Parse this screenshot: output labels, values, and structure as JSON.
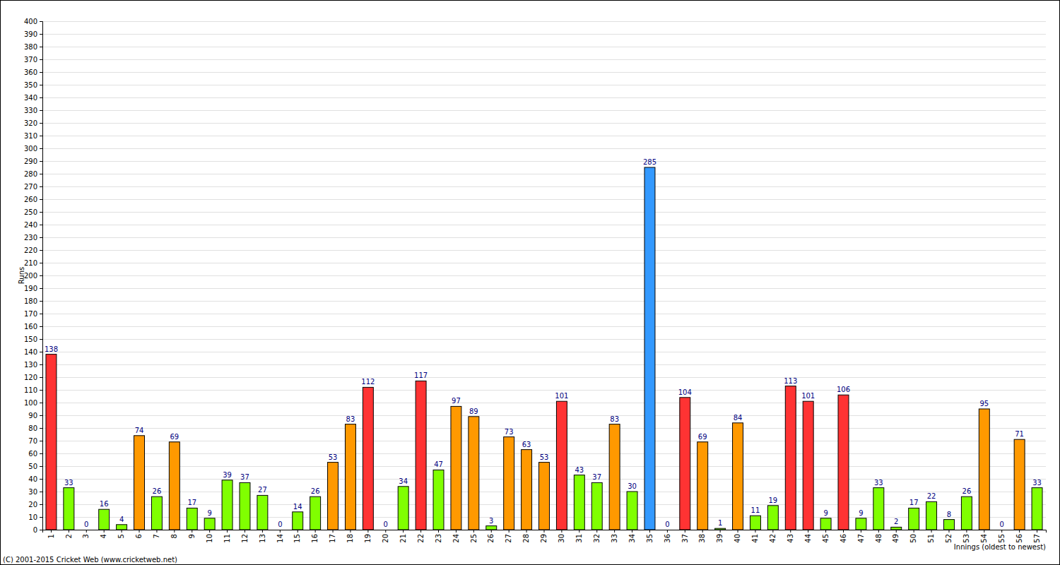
{
  "chart_data": {
    "type": "bar",
    "x_label": "Innings (oldest to newest)",
    "y_label": "Runs",
    "annotations": [
      "(C) 2001-2015 Cricket Web (www.cricketweb.net)"
    ],
    "categories": [
      "1",
      "2",
      "3",
      "4",
      "5",
      "6",
      "7",
      "8",
      "9",
      "10",
      "11",
      "12",
      "13",
      "14",
      "15",
      "16",
      "17",
      "18",
      "19",
      "20",
      "21",
      "22",
      "23",
      "24",
      "25",
      "26",
      "27",
      "28",
      "29",
      "30",
      "31",
      "32",
      "33",
      "34",
      "35",
      "36",
      "37",
      "38",
      "39",
      "40",
      "41",
      "42",
      "43",
      "44",
      "45",
      "46",
      "47",
      "48",
      "49",
      "50",
      "51",
      "52",
      "53",
      "54",
      "55",
      "56",
      "57"
    ],
    "values": [
      138,
      33,
      0,
      16,
      4,
      74,
      26,
      69,
      17,
      9,
      39,
      37,
      27,
      0,
      14,
      26,
      53,
      83,
      112,
      0,
      34,
      117,
      47,
      97,
      89,
      3,
      73,
      63,
      53,
      101,
      43,
      37,
      83,
      30,
      285,
      0,
      104,
      69,
      1,
      84,
      11,
      19,
      113,
      101,
      9,
      106,
      9,
      33,
      2,
      17,
      22,
      8,
      26,
      95,
      0,
      71,
      33
    ],
    "colors": [
      "#ff3333",
      "#80ff00",
      "#80ff00",
      "#80ff00",
      "#80ff00",
      "#ff9900",
      "#80ff00",
      "#ff9900",
      "#80ff00",
      "#80ff00",
      "#80ff00",
      "#80ff00",
      "#80ff00",
      "#80ff00",
      "#80ff00",
      "#80ff00",
      "#ff9900",
      "#ff9900",
      "#ff3333",
      "#80ff00",
      "#80ff00",
      "#ff3333",
      "#80ff00",
      "#ff9900",
      "#ff9900",
      "#80ff00",
      "#ff9900",
      "#ff9900",
      "#ff9900",
      "#ff3333",
      "#80ff00",
      "#80ff00",
      "#ff9900",
      "#80ff00",
      "#3399ff",
      "#80ff00",
      "#ff3333",
      "#ff9900",
      "#80ff00",
      "#ff9900",
      "#80ff00",
      "#80ff00",
      "#ff3333",
      "#ff3333",
      "#80ff00",
      "#ff3333",
      "#80ff00",
      "#80ff00",
      "#80ff00",
      "#80ff00",
      "#80ff00",
      "#80ff00",
      "#80ff00",
      "#ff9900",
      "#80ff00",
      "#ff9900",
      "#80ff00"
    ],
    "ylim": [
      0,
      400
    ],
    "yticks": [
      0,
      10,
      20,
      30,
      40,
      50,
      60,
      70,
      80,
      90,
      100,
      110,
      120,
      130,
      140,
      150,
      160,
      170,
      180,
      190,
      200,
      210,
      220,
      230,
      240,
      250,
      260,
      270,
      280,
      290,
      300,
      310,
      320,
      330,
      340,
      350,
      360,
      370,
      380,
      390,
      400
    ],
    "grid": true,
    "data_labels": true
  }
}
